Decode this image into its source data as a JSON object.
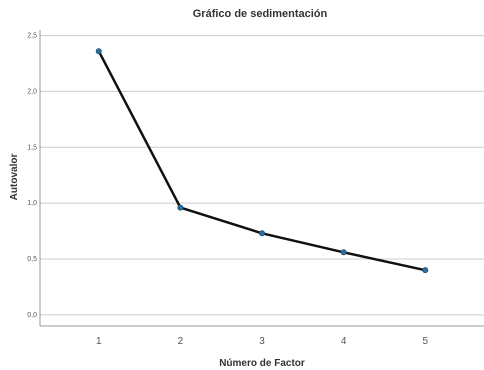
{
  "chart_data": {
    "type": "line",
    "title": "Gráfico de sedimentación",
    "xlabel": "Número de Factor",
    "ylabel": "Autovalor",
    "x": [
      1,
      2,
      3,
      4,
      5
    ],
    "x_tick_labels": [
      "1",
      "2",
      "3",
      "4",
      "5"
    ],
    "y_ticks": [
      0,
      0.5,
      1.0,
      1.5,
      2.0,
      2.5
    ],
    "y_tick_labels": [
      "0,0",
      "0,5",
      "1,0",
      "1,5",
      "2,0",
      "2,5"
    ],
    "xlim": [
      0.28,
      5.72
    ],
    "ylim": [
      -0.1,
      2.55
    ],
    "grid": "horizontal",
    "series": [
      {
        "values": [
          2.36,
          0.96,
          0.73,
          0.56,
          0.4
        ],
        "line_color": "#111111",
        "marker_color": "#2f6f9f"
      }
    ]
  }
}
